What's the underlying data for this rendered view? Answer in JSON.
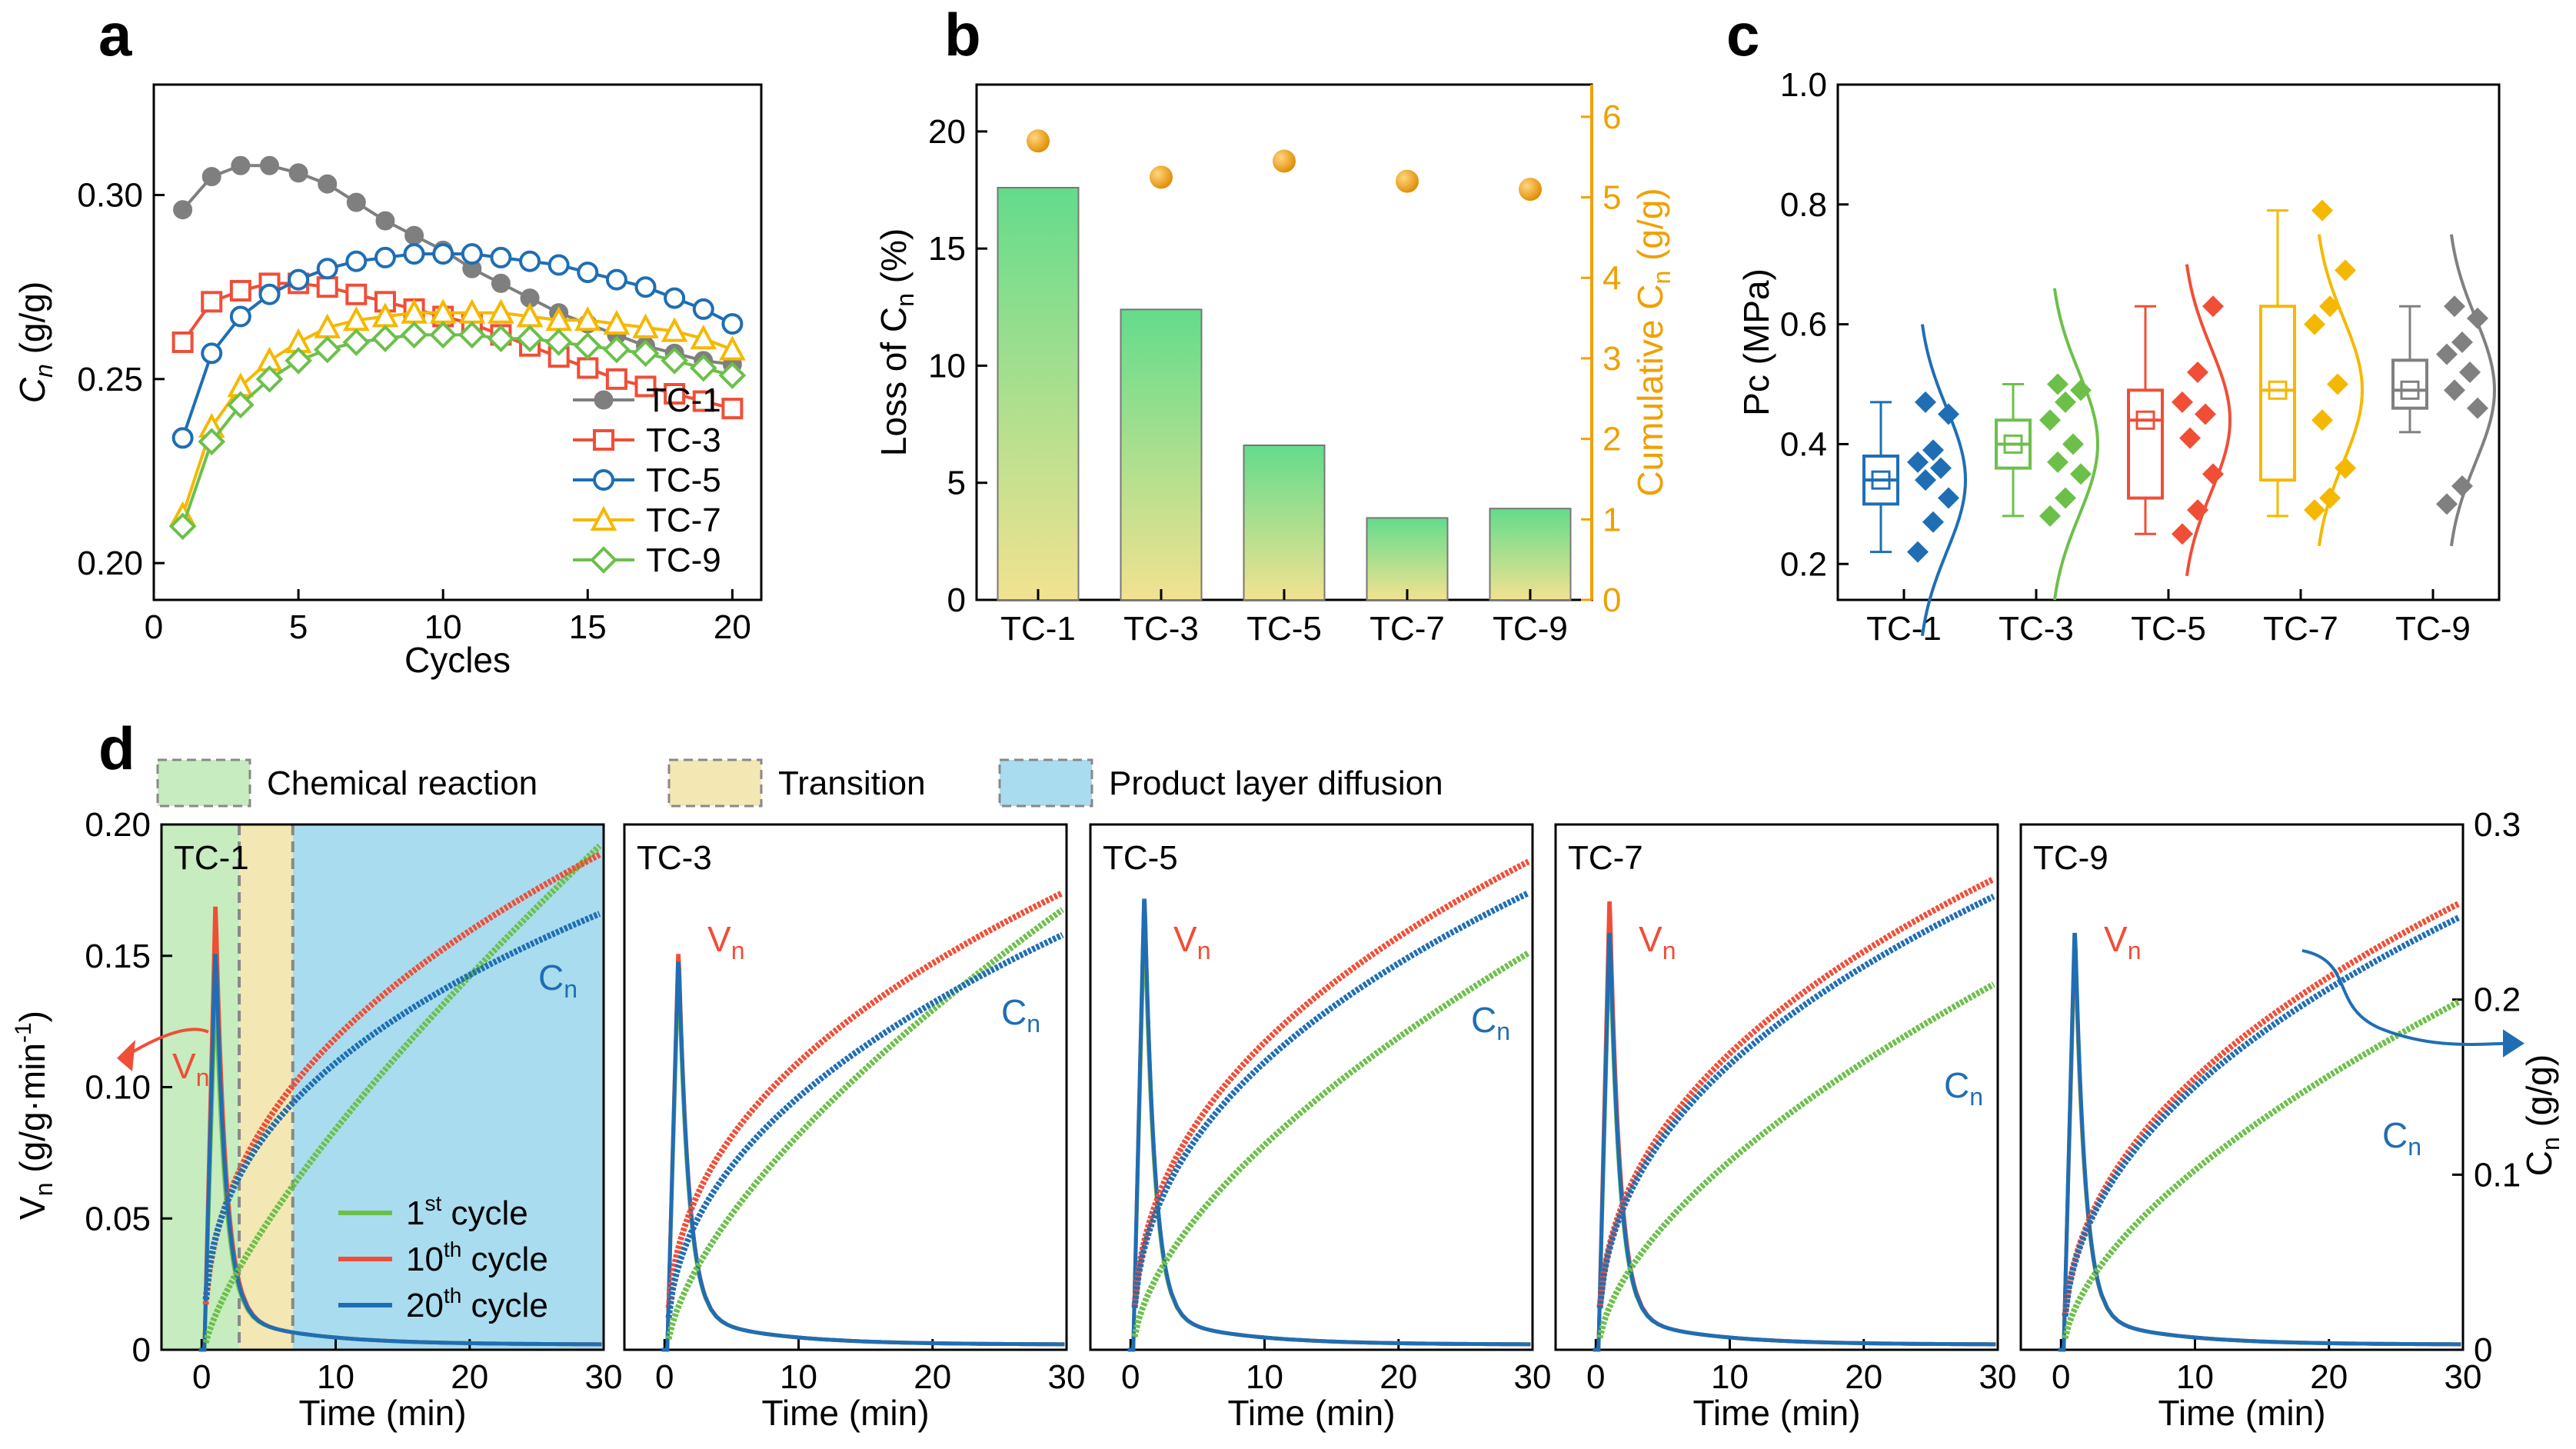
{
  "panels": {
    "a": {
      "label": "a",
      "chart_data": {
        "type": "line",
        "xlabel": "Cycles",
        "ylabel": "C",
        "ylabel_sub": "n",
        "ylabel_unit": " (g/g)",
        "xlim": [
          0,
          21
        ],
        "ylim": [
          0.19,
          0.33
        ],
        "xticks": [
          "0",
          "5",
          "10",
          "15",
          "20"
        ],
        "yticks": [
          "0.20",
          "0.25",
          "0.30"
        ],
        "x": [
          1,
          2,
          3,
          4,
          5,
          6,
          7,
          8,
          9,
          10,
          11,
          12,
          13,
          14,
          15,
          16,
          17,
          18,
          19,
          20
        ],
        "series": [
          {
            "name": "TC-1",
            "color": "#7f7f7f",
            "marker": "circle-filled",
            "values": [
              0.296,
              0.305,
              0.308,
              0.308,
              0.306,
              0.303,
              0.298,
              0.293,
              0.289,
              0.285,
              0.28,
              0.276,
              0.272,
              0.268,
              0.265,
              0.262,
              0.259,
              0.257,
              0.255,
              0.254
            ]
          },
          {
            "name": "TC-3",
            "color": "#f04e37",
            "marker": "square-open",
            "values": [
              0.26,
              0.271,
              0.274,
              0.276,
              0.276,
              0.275,
              0.273,
              0.271,
              0.269,
              0.267,
              0.265,
              0.262,
              0.259,
              0.256,
              0.253,
              0.25,
              0.248,
              0.246,
              0.244,
              0.242
            ]
          },
          {
            "name": "TC-5",
            "color": "#1f6eb4",
            "marker": "circle-open",
            "values": [
              0.234,
              0.257,
              0.267,
              0.273,
              0.277,
              0.28,
              0.282,
              0.283,
              0.284,
              0.284,
              0.284,
              0.283,
              0.282,
              0.281,
              0.279,
              0.277,
              0.275,
              0.272,
              0.269,
              0.265
            ]
          },
          {
            "name": "TC-7",
            "color": "#f5b800",
            "marker": "triangle-open",
            "values": [
              0.213,
              0.237,
              0.248,
              0.255,
              0.26,
              0.264,
              0.266,
              0.267,
              0.268,
              0.268,
              0.268,
              0.268,
              0.267,
              0.266,
              0.266,
              0.265,
              0.264,
              0.263,
              0.261,
              0.258
            ]
          },
          {
            "name": "TC-9",
            "color": "#6cc04a",
            "marker": "diamond-open",
            "values": [
              0.21,
              0.233,
              0.243,
              0.25,
              0.255,
              0.258,
              0.26,
              0.261,
              0.262,
              0.262,
              0.262,
              0.261,
              0.261,
              0.26,
              0.259,
              0.258,
              0.257,
              0.255,
              0.253,
              0.251
            ]
          }
        ]
      }
    },
    "b": {
      "label": "b",
      "chart_data": {
        "type": "bar",
        "categories": [
          "TC-1",
          "TC-3",
          "TC-5",
          "TC-7",
          "TC-9"
        ],
        "values": [
          17.6,
          12.4,
          6.6,
          3.5,
          3.9
        ],
        "ylabel": "Loss of C",
        "ylabel_sub": "n",
        "ylabel_unit": " (%)",
        "ylim": [
          0,
          22.0
        ],
        "yticks": [
          "0",
          "5",
          "10",
          "15",
          "20"
        ],
        "bar_colors": {
          "top": "#63dc8c",
          "bottom": "#f2e290"
        },
        "secondary": {
          "type": "scatter",
          "ylabel": "Cumulative C",
          "ylabel_sub": "n",
          "ylabel_unit": " (g/g)",
          "color": "#f0a000",
          "ylim": [
            0,
            6.4
          ],
          "yticks": [
            "0",
            "1",
            "2",
            "3",
            "4",
            "5",
            "6"
          ],
          "values": [
            5.7,
            5.25,
            5.45,
            5.2,
            5.1
          ]
        }
      }
    },
    "c": {
      "label": "c",
      "chart_data": {
        "type": "box",
        "categories": [
          "TC-1",
          "TC-3",
          "TC-5",
          "TC-7",
          "TC-9"
        ],
        "ylabel": "Pc (MPa)",
        "ylim": [
          0.14,
          1.0
        ],
        "yticks": [
          "0.2",
          "0.4",
          "0.6",
          "0.8",
          "1.0"
        ],
        "groups": [
          {
            "name": "TC-1",
            "color": "#1f6eb4",
            "min": 0.22,
            "q1": 0.3,
            "median": 0.34,
            "q3": 0.38,
            "max": 0.47,
            "mean": 0.34,
            "points": [
              0.22,
              0.27,
              0.31,
              0.34,
              0.36,
              0.37,
              0.39,
              0.45,
              0.47
            ]
          },
          {
            "name": "TC-3",
            "color": "#6cc04a",
            "min": 0.28,
            "q1": 0.36,
            "median": 0.4,
            "q3": 0.44,
            "max": 0.5,
            "mean": 0.4,
            "points": [
              0.28,
              0.31,
              0.35,
              0.37,
              0.4,
              0.44,
              0.47,
              0.49,
              0.5
            ]
          },
          {
            "name": "TC-5",
            "color": "#f04e37",
            "min": 0.25,
            "q1": 0.31,
            "median": 0.44,
            "q3": 0.49,
            "max": 0.63,
            "mean": 0.44,
            "points": [
              0.25,
              0.29,
              0.35,
              0.41,
              0.45,
              0.47,
              0.52,
              0.63
            ]
          },
          {
            "name": "TC-7",
            "color": "#f5b800",
            "min": 0.28,
            "q1": 0.34,
            "median": 0.49,
            "q3": 0.63,
            "max": 0.79,
            "mean": 0.49,
            "points": [
              0.29,
              0.31,
              0.36,
              0.44,
              0.5,
              0.6,
              0.63,
              0.69,
              0.79
            ]
          },
          {
            "name": "TC-9",
            "color": "#808080",
            "min": 0.42,
            "q1": 0.46,
            "median": 0.49,
            "q3": 0.54,
            "max": 0.63,
            "mean": 0.49,
            "points": [
              0.3,
              0.33,
              0.46,
              0.49,
              0.52,
              0.55,
              0.57,
              0.61,
              0.63
            ]
          }
        ]
      }
    },
    "d": {
      "label": "d",
      "legend_regions": [
        {
          "label": "Chemical reaction",
          "color": "#c6ecc0"
        },
        {
          "label": "Transition",
          "color": "#f3e7b3"
        },
        {
          "label": "Product layer diffusion",
          "color": "#a9dcef"
        }
      ],
      "cycle_legend": [
        {
          "label": "1",
          "sup": "st",
          "rest": " cycle",
          "color": "#6cc04a"
        },
        {
          "label": "10",
          "sup": "th",
          "rest": " cycle",
          "color": "#f04e37"
        },
        {
          "label": "20",
          "sup": "th",
          "rest": " cycle",
          "color": "#1f6eb4"
        }
      ],
      "vn_label": {
        "main": "V",
        "sub": "n"
      },
      "cn_label": {
        "main": "C",
        "sub": "n"
      },
      "chart_data": {
        "type": "line",
        "xlabel": "Time (min)",
        "ylabel_left": "V",
        "ylabel_left_sub": "n",
        "ylabel_left_unit": " (g/g·min",
        "ylabel_left_sup": "-1",
        "ylabel_left_close": ")",
        "ylabel_right": "C",
        "ylabel_right_sub": "n",
        "ylabel_right_unit": " (g/g)",
        "xlim": [
          -3,
          30
        ],
        "ylim_left": [
          0,
          0.2
        ],
        "ylim_right": [
          0,
          0.3
        ],
        "xticks": [
          "0",
          "10",
          "20",
          "30"
        ],
        "yticks_left": [
          "0",
          "0.05",
          "0.10",
          "0.15",
          "0.20"
        ],
        "yticks_right": [
          "0",
          "0.1",
          "0.2",
          "0.3"
        ],
        "region_bounds_min": [
          -3,
          2.8,
          6.8,
          30
        ],
        "subplots": [
          {
            "title": "TC-1",
            "vn_peak": [
              0.132,
              0.168,
              0.15
            ],
            "cn_30min": [
              0.29,
              0.284,
              0.25
            ],
            "cn_exp": [
              0.75,
              0.42,
              0.38
            ]
          },
          {
            "title": "TC-3",
            "vn_peak": [
              0.14,
              0.15,
              0.147
            ],
            "cn_30min": [
              0.253,
              0.262,
              0.238
            ],
            "cn_exp": [
              0.65,
              0.42,
              0.45
            ]
          },
          {
            "title": "TC-5",
            "vn_peak": [
              0.16,
              0.17,
              0.171
            ],
            "cn_30min": [
              0.228,
              0.28,
              0.262
            ],
            "cn_exp": [
              0.6,
              0.42,
              0.42
            ]
          },
          {
            "title": "TC-7",
            "vn_peak": [
              0.15,
              0.17,
              0.158
            ],
            "cn_30min": [
              0.21,
              0.27,
              0.26
            ],
            "cn_exp": [
              0.6,
              0.42,
              0.42
            ]
          },
          {
            "title": "TC-9",
            "vn_peak": [
              0.15,
              0.155,
              0.158
            ],
            "cn_30min": [
              0.2,
              0.256,
              0.248
            ],
            "cn_exp": [
              0.6,
              0.45,
              0.45
            ]
          }
        ]
      }
    }
  }
}
